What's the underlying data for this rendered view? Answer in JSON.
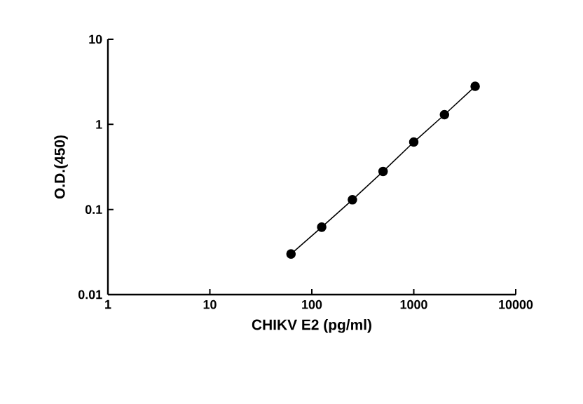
{
  "chart_data": {
    "type": "line",
    "xlabel": "CHIKV E2 (pg/ml)",
    "ylabel": "O.D.(450)",
    "log": "xy",
    "marker": "circle",
    "line_style": "solid",
    "x": [
      62.5,
      125,
      250,
      500,
      1000,
      2000,
      4000
    ],
    "series": [
      {
        "color": "#000000",
        "values": [
          0.03,
          0.062,
          0.13,
          0.28,
          0.62,
          1.3,
          2.8
        ]
      }
    ],
    "xlim": [
      1,
      10000
    ],
    "xticks": [
      1,
      10,
      100,
      1000,
      10000
    ],
    "ylim": [
      0.01,
      10
    ],
    "yticks": [
      0.01,
      0.1,
      1,
      10
    ]
  }
}
